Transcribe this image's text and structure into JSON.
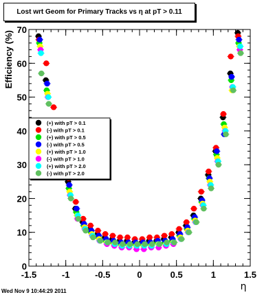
{
  "chart_data": {
    "type": "scatter",
    "title": "Lost wrt Geom for Primary Tracks vs    η at pT > 0.11",
    "xlabel": "η",
    "ylabel": "Efficiency (%)",
    "xlim": [
      -1.5,
      1.5
    ],
    "ylim": [
      0,
      70
    ],
    "x_ticks": [
      "-1.5",
      "-1",
      "-0.5",
      "0",
      "0.5",
      "1",
      "1.5"
    ],
    "y_ticks": [
      "0",
      "10",
      "20",
      "30",
      "40",
      "50",
      "60",
      "70"
    ],
    "grid": false,
    "legend_position": "left-middle",
    "series": [
      {
        "name": "(+) with pT > 0.1",
        "color": "#000000",
        "x": [
          -1.35,
          -1.25,
          -1.15,
          -1.05,
          -0.95,
          -0.85,
          -0.75,
          -0.65,
          -0.55,
          -0.45,
          -0.35,
          -0.25,
          -0.15,
          -0.05,
          0.05,
          0.15,
          0.25,
          0.35,
          0.45,
          0.55,
          0.65,
          0.75,
          0.85,
          0.95,
          1.05,
          1.15,
          1.25,
          1.35
        ],
        "y": [
          68,
          55,
          42,
          33,
          25,
          17,
          13,
          11,
          9.5,
          8.5,
          8,
          7.5,
          7.5,
          7,
          7,
          7.5,
          7.5,
          8,
          8.5,
          10,
          12,
          15,
          20,
          27,
          34,
          44,
          57,
          69
        ]
      },
      {
        "name": "(-) with pT > 0.1",
        "color": "#ff0000",
        "x": [
          -1.35,
          -1.25,
          -1.15,
          -1.05,
          -0.95,
          -0.85,
          -0.75,
          -0.65,
          -0.55,
          -0.45,
          -0.35,
          -0.25,
          -0.15,
          -0.05,
          0.05,
          0.15,
          0.25,
          0.35,
          0.45,
          0.55,
          0.65,
          0.75,
          0.85,
          0.95,
          1.05,
          1.15,
          1.25,
          1.35
        ],
        "y": [
          67,
          60,
          47,
          35,
          26,
          19,
          14,
          12,
          10.5,
          9.5,
          9,
          8.5,
          8.5,
          8,
          8,
          8.5,
          8.5,
          9,
          9.5,
          11,
          13,
          17,
          22,
          28,
          35,
          45,
          62,
          68
        ]
      },
      {
        "name": "(+) with pT > 0.5",
        "color": "#00e000",
        "x": [
          -1.35,
          -1.25,
          -1.15,
          -1.05,
          -0.95,
          -0.85,
          -0.75,
          -0.65,
          -0.55,
          -0.45,
          -0.35,
          -0.25,
          -0.15,
          -0.05,
          0.05,
          0.15,
          0.25,
          0.35,
          0.45,
          0.55,
          0.65,
          0.75,
          0.85,
          0.95,
          1.05,
          1.15,
          1.25,
          1.35
        ],
        "y": [
          66,
          52,
          40,
          30,
          23,
          16,
          12,
          10,
          8.5,
          7.5,
          7,
          6.5,
          6.5,
          6.5,
          6.5,
          6.5,
          7,
          7,
          7.5,
          9,
          11,
          14,
          19,
          26,
          33,
          42,
          55,
          66
        ]
      },
      {
        "name": "(-) with pT > 0.5",
        "color": "#0000ff",
        "x": [
          -1.35,
          -1.25,
          -1.15,
          -1.05,
          -0.95,
          -0.85,
          -0.75,
          -0.65,
          -0.55,
          -0.45,
          -0.35,
          -0.25,
          -0.15,
          -0.05,
          0.05,
          0.15,
          0.25,
          0.35,
          0.45,
          0.55,
          0.65,
          0.75,
          0.85,
          0.95,
          1.05,
          1.15,
          1.25,
          1.35
        ],
        "y": [
          67,
          54,
          41,
          31,
          24,
          17,
          12.5,
          10.5,
          9,
          8,
          7.5,
          7,
          7,
          7,
          7,
          7,
          7.5,
          7.5,
          8,
          9.5,
          11.5,
          14.5,
          19.5,
          26,
          34,
          39,
          56,
          67
        ]
      },
      {
        "name": "(+) with pT > 1.0",
        "color": "#ffff00",
        "x": [
          -1.35,
          -1.25,
          -1.15,
          -1.05,
          -0.95,
          -0.85,
          -0.75,
          -0.65,
          -0.55,
          -0.45,
          -0.35,
          -0.25,
          -0.15,
          -0.05,
          0.05,
          0.15,
          0.25,
          0.35,
          0.45,
          0.55,
          0.65,
          0.75,
          0.85,
          0.95,
          1.05,
          1.15,
          1.25,
          1.35
        ],
        "y": [
          65,
          51,
          39,
          29,
          22,
          15,
          11.5,
          9.5,
          8,
          7,
          6.5,
          6,
          6,
          6,
          6,
          6,
          6.5,
          6.5,
          7,
          8.5,
          10.5,
          13.5,
          18.5,
          25,
          32,
          41,
          52,
          65
        ]
      },
      {
        "name": "(-) with pT > 1.0",
        "color": "#ff00ff",
        "x": [
          -1.35,
          -1.25,
          -1.15,
          -1.05,
          -0.95,
          -0.85,
          -0.75,
          -0.65,
          -0.55,
          -0.45,
          -0.35,
          -0.25,
          -0.15,
          -0.05,
          0.05,
          0.15,
          0.25,
          0.35,
          0.45,
          0.55,
          0.65,
          0.75,
          0.85,
          0.95,
          1.05,
          1.15,
          1.25,
          1.35
        ],
        "y": [
          64,
          50,
          38,
          28,
          21,
          14,
          11,
          9,
          7.5,
          6.5,
          6,
          5.5,
          5.5,
          5,
          5,
          5.5,
          5.5,
          6,
          6.5,
          8,
          10,
          13,
          18,
          24,
          31,
          40,
          53,
          64
        ]
      },
      {
        "name": "(+) with pT > 2.0",
        "color": "#00ffff",
        "x": [
          -1.35,
          -1.25,
          -1.15,
          -1.05,
          -0.95,
          -0.85,
          -0.75,
          -0.65,
          -0.55,
          -0.45,
          -0.35,
          -0.25,
          -0.15,
          -0.05,
          0.05,
          0.15,
          0.25,
          0.35,
          0.45,
          0.55,
          0.65,
          0.75,
          0.85,
          0.95,
          1.05,
          1.15,
          1.25,
          1.35
        ],
        "y": [
          63,
          50,
          38,
          28,
          21,
          15,
          11,
          9,
          7.5,
          7,
          6.5,
          6,
          6,
          6,
          6,
          6,
          6.5,
          6.5,
          7,
          8,
          10,
          13,
          18,
          24,
          31,
          40,
          53,
          65
        ]
      },
      {
        "name": "(-) with pT > 2.0",
        "color": "#60c060",
        "x": [
          -1.35,
          -1.25,
          -1.15,
          -1.05,
          -0.95,
          -0.85,
          -0.75,
          -0.65,
          -0.55,
          -0.45,
          -0.35,
          -0.25,
          -0.15,
          -0.05,
          0.05,
          0.15,
          0.25,
          0.35,
          0.45,
          0.55,
          0.65,
          0.75,
          0.85,
          0.95,
          1.05,
          1.15,
          1.25,
          1.35
        ],
        "y": [
          57,
          48,
          36,
          27,
          20,
          14,
          10.5,
          8.5,
          7.5,
          7,
          7,
          6.5,
          6.5,
          6.5,
          6.5,
          6.5,
          6.5,
          7,
          7,
          8,
          10,
          13,
          17,
          23,
          30,
          39,
          52,
          63
        ]
      }
    ]
  },
  "footer_text": "Wed Nov  9 10:44:29 2011"
}
